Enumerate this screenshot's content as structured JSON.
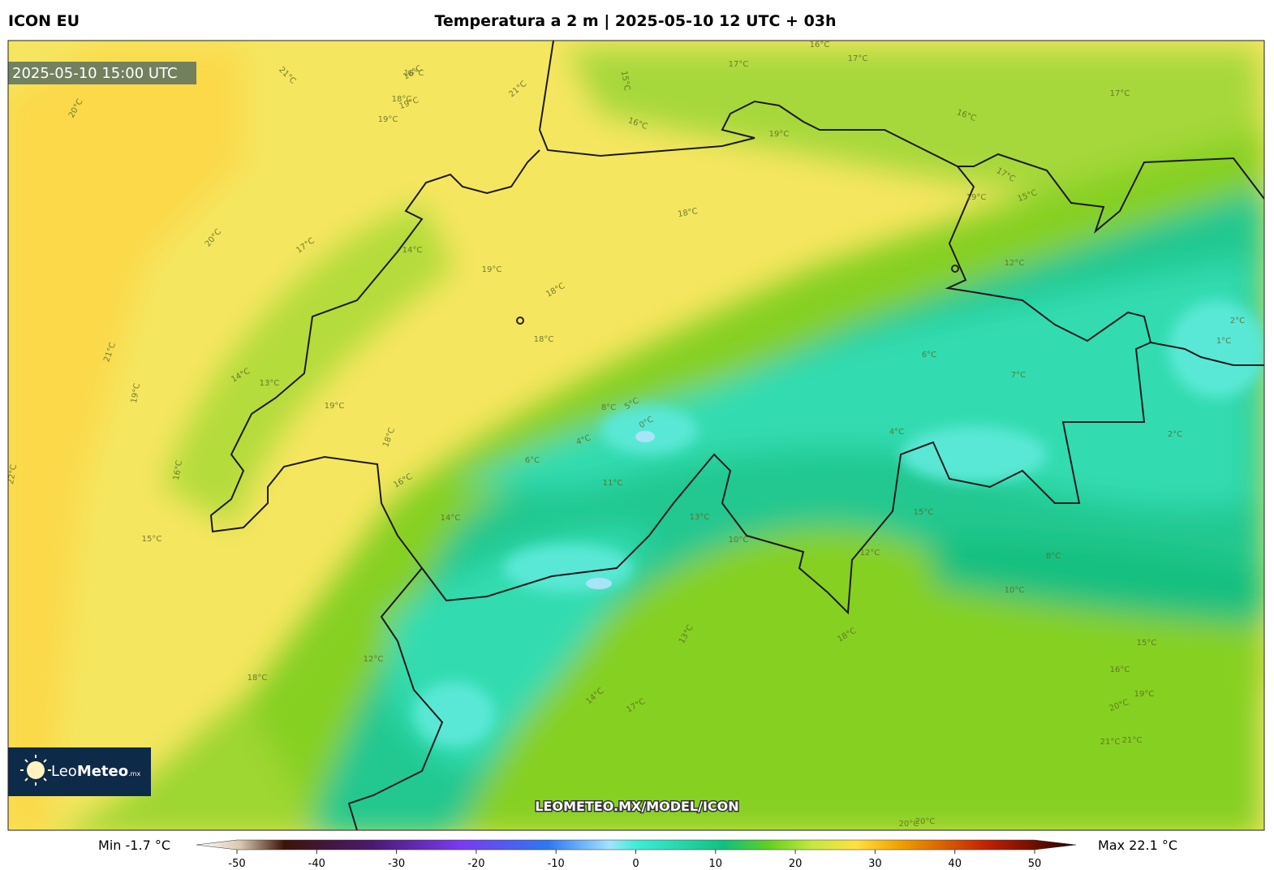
{
  "header": {
    "model": "ICON EU",
    "title": "Temperatura a 2 m | 2025-05-10 12 UTC + 03h"
  },
  "timestamp": "2025-05-10 15:00 UTC",
  "watermark": "LEOMETEO.MX/MODEL/ICON",
  "logo": {
    "name_light": "Leo",
    "name_bold": "Meteo",
    "suffix": ".mx"
  },
  "contour_labels": [
    "21°C",
    "20°C",
    "16°C",
    "17°C",
    "18°C",
    "19°C",
    "21°C",
    "16°C",
    "17°C",
    "16°C",
    "15°C",
    "16°C",
    "19°C",
    "19°C",
    "17°C",
    "18°C",
    "16°C",
    "17°C",
    "15°C",
    "19°C",
    "20°C",
    "17°C",
    "14°C",
    "19°C",
    "18°C",
    "18°C",
    "21°C",
    "19°C",
    "14°C",
    "13°C",
    "19°C",
    "18°C",
    "16°C",
    "15°C",
    "12°C",
    "10°C",
    "8°C",
    "6°C",
    "5°C",
    "4°C",
    "2°C",
    "1°C",
    "0°C",
    "11°C",
    "14°C",
    "13°C",
    "12°C",
    "15°C",
    "16°C",
    "18°C",
    "17°C",
    "20°C",
    "21°C",
    "22°C",
    "12°C",
    "14°C",
    "16°C",
    "19°C",
    "20°C",
    "6°C",
    "4°C",
    "2°C",
    "7°C",
    "8°C",
    "10°C",
    "13°C",
    "15°C",
    "18°C",
    "21°C",
    "20°C"
  ],
  "colorbar": {
    "ticks": [
      -50,
      -40,
      -30,
      -20,
      -10,
      0,
      10,
      20,
      30,
      40,
      50
    ],
    "min_label": "Min -1.7 °C",
    "max_label": "Max 22.1 °C"
  }
}
